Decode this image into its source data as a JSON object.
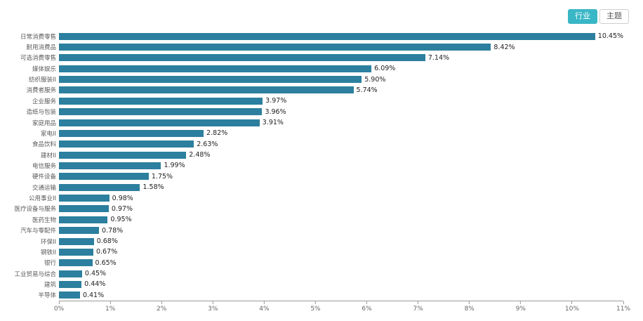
{
  "toggle": {
    "industry_label": "行业",
    "theme_label": "主题"
  },
  "colors": {
    "bar": "#2c7f9e",
    "active_button_bg": "#3ab7c6",
    "active_button_text": "#ffffff"
  },
  "chart_data": {
    "type": "bar",
    "orientation": "horizontal",
    "title": "",
    "xlabel": "",
    "ylabel": "",
    "xlim": [
      0,
      11
    ],
    "grid": false,
    "value_suffix": "%",
    "x_ticks": [
      "0%",
      "1%",
      "2%",
      "3%",
      "4%",
      "5%",
      "6%",
      "7%",
      "8%",
      "9%",
      "10%",
      "11%"
    ],
    "categories": [
      "日常消费零售",
      "耐用消费品",
      "可选消费零售",
      "媒体娱乐",
      "纺织服装II",
      "消费者服务",
      "企业服务",
      "造纸与包装",
      "家庭用品",
      "家电II",
      "食品饮料",
      "建材II",
      "电信服务",
      "硬件设备",
      "交通运输",
      "公用事业II",
      "医疗设备与服务",
      "医药生物",
      "汽车与零配件",
      "环保II",
      "钢铁II",
      "银行",
      "工业贸易与综合",
      "建筑",
      "半导体"
    ],
    "values": [
      10.45,
      8.42,
      7.14,
      6.09,
      5.9,
      5.74,
      3.97,
      3.96,
      3.91,
      2.82,
      2.63,
      2.48,
      1.99,
      1.75,
      1.58,
      0.98,
      0.97,
      0.95,
      0.78,
      0.68,
      0.67,
      0.65,
      0.45,
      0.44,
      0.41
    ]
  }
}
